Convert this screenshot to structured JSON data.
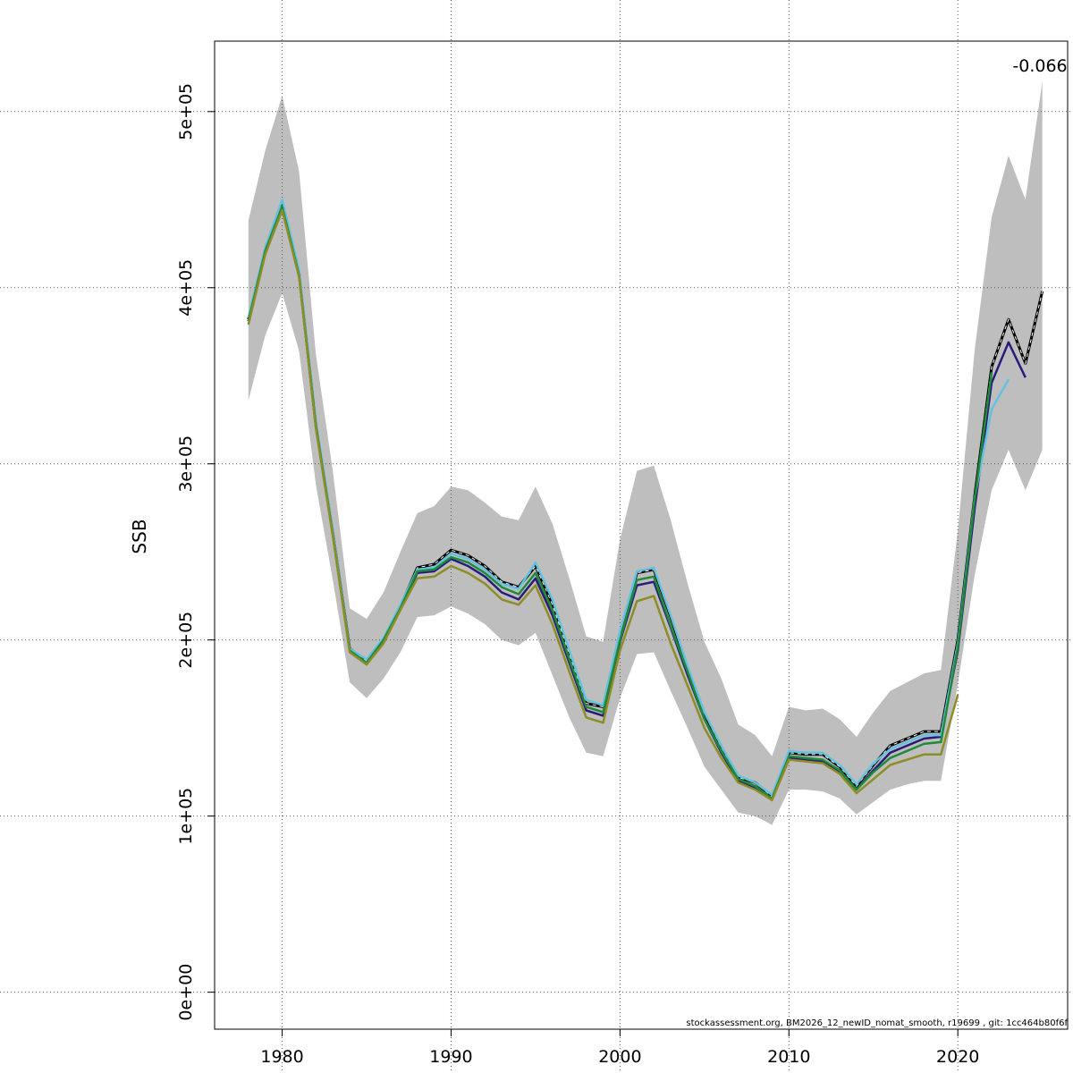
{
  "chart_data": {
    "type": "line",
    "title": "",
    "xlabel": "",
    "ylabel": "SSB",
    "xlim": [
      1976,
      2026.5
    ],
    "ylim": [
      -21000,
      540000
    ],
    "grid": true,
    "x_ticks": [
      1980,
      1990,
      2000,
      2010,
      2020
    ],
    "x_tick_labels": [
      "1980",
      "1990",
      "2000",
      "2010",
      "2020"
    ],
    "y_ticks": [
      0,
      100000,
      200000,
      300000,
      400000,
      500000
    ],
    "y_tick_labels": [
      "0e+00",
      "1e+05",
      "2e+05",
      "3e+05",
      "4e+05",
      "5e+05"
    ],
    "annotation": "-0.066",
    "footer": "stockassessment.org, BM2026_12_newID_nomat_smooth, r19699 , git: 1cc464b80f6f",
    "band": {
      "color": "#bebebe",
      "x": [
        1978,
        1979,
        1980,
        1981,
        1982,
        1983,
        1984,
        1985,
        1986,
        1987,
        1988,
        1989,
        1990,
        1991,
        1992,
        1993,
        1994,
        1995,
        1996,
        1997,
        1998,
        1999,
        2000,
        2001,
        2002,
        2003,
        2004,
        2005,
        2006,
        2007,
        2008,
        2009,
        2010,
        2011,
        2012,
        2013,
        2014,
        2015,
        2016,
        2017,
        2018,
        2019,
        2020,
        2021,
        2022,
        2023,
        2024,
        2025
      ],
      "lower": [
        336000,
        373000,
        397000,
        364000,
        288000,
        234000,
        176000,
        167000,
        178000,
        193000,
        213000,
        214000,
        219000,
        215000,
        209000,
        200000,
        197000,
        204000,
        180000,
        156000,
        136000,
        134000,
        167000,
        192000,
        193000,
        171000,
        150000,
        128000,
        115000,
        102000,
        100000,
        95000,
        115000,
        115000,
        114000,
        110000,
        101000,
        108000,
        115000,
        118000,
        120000,
        120000,
        175000,
        237000,
        285000,
        308000,
        285000,
        308000
      ],
      "upper": [
        438000,
        478000,
        509000,
        466000,
        362000,
        296000,
        218000,
        212000,
        227000,
        250000,
        272000,
        276000,
        287000,
        285000,
        278000,
        270000,
        268000,
        287000,
        266000,
        235000,
        202000,
        199000,
        257000,
        296000,
        299000,
        268000,
        232000,
        199000,
        178000,
        152000,
        146000,
        134000,
        162000,
        160000,
        161000,
        155000,
        145000,
        159000,
        171000,
        176000,
        181000,
        183000,
        262000,
        365000,
        440000,
        475000,
        450000,
        517000
      ]
    },
    "series": [
      {
        "color": "#000000",
        "dashed": true,
        "x": [
          1978,
          1979,
          1980,
          1981,
          1982,
          1983,
          1984,
          1985,
          1986,
          1987,
          1988,
          1989,
          1990,
          1991,
          1992,
          1993,
          1994,
          1995,
          1996,
          1997,
          1998,
          1999,
          2000,
          2001,
          2002,
          2003,
          2004,
          2005,
          2006,
          2007,
          2008,
          2009,
          2010,
          2011,
          2012,
          2013,
          2014,
          2015,
          2016,
          2017,
          2018,
          2019,
          2020,
          2021,
          2022,
          2023,
          2024,
          2025
        ],
        "values": [
          382000,
          421000,
          447000,
          408000,
          322000,
          261000,
          195000,
          188000,
          200000,
          219000,
          241000,
          243000,
          251000,
          248000,
          242000,
          233000,
          230000,
          242000,
          220000,
          192000,
          164000,
          162000,
          204000,
          238000,
          240000,
          213000,
          184000,
          158000,
          139000,
          122000,
          119000,
          111000,
          136000,
          135000,
          135000,
          128000,
          117000,
          129000,
          140000,
          144000,
          148000,
          148000,
          200000,
          282000,
          355000,
          382000,
          357000,
          398000
        ]
      },
      {
        "color": "#2b1a7a",
        "x": [
          1978,
          1979,
          1980,
          1981,
          1982,
          1983,
          1984,
          1985,
          1986,
          1987,
          1988,
          1989,
          1990,
          1991,
          1992,
          1993,
          1994,
          1995,
          1996,
          1997,
          1998,
          1999,
          2000,
          2001,
          2002,
          2003,
          2004,
          2005,
          2006,
          2007,
          2008,
          2009,
          2010,
          2011,
          2012,
          2013,
          2014,
          2015,
          2016,
          2017,
          2018,
          2019,
          2020,
          2021,
          2022,
          2023,
          2024
        ],
        "values": [
          381000,
          420000,
          446000,
          407000,
          321000,
          260000,
          194000,
          187000,
          199000,
          218000,
          238000,
          239000,
          246000,
          242000,
          236000,
          227000,
          223000,
          235000,
          214000,
          187000,
          160000,
          157000,
          199000,
          231000,
          233000,
          207000,
          180000,
          155000,
          136000,
          120000,
          116000,
          110000,
          133000,
          132000,
          131000,
          125000,
          115000,
          126000,
          136000,
          140000,
          144000,
          145000,
          194000,
          275000,
          346000,
          369000,
          349000
        ]
      },
      {
        "color": "#63c2e0",
        "x": [
          1978,
          1979,
          1980,
          1981,
          1982,
          1983,
          1984,
          1985,
          1986,
          1987,
          1988,
          1989,
          1990,
          1991,
          1992,
          1993,
          1994,
          1995,
          1996,
          1997,
          1998,
          1999,
          2000,
          2001,
          2002,
          2003,
          2004,
          2005,
          2006,
          2007,
          2008,
          2009,
          2010,
          2011,
          2012,
          2013,
          2014,
          2015,
          2016,
          2017,
          2018,
          2019,
          2020,
          2021,
          2022,
          2023
        ],
        "values": [
          383000,
          423000,
          450000,
          410000,
          324000,
          262000,
          195000,
          189000,
          201000,
          220000,
          240000,
          241000,
          249000,
          246000,
          240000,
          232000,
          229000,
          244000,
          223000,
          194000,
          166000,
          163000,
          205000,
          239000,
          241000,
          214000,
          185000,
          159000,
          140000,
          123000,
          119000,
          112000,
          137000,
          136000,
          136000,
          129000,
          118000,
          130000,
          138000,
          142000,
          146000,
          146000,
          198000,
          281000,
          331000,
          348000
        ]
      },
      {
        "color": "#1f8a3a",
        "x": [
          1978,
          1979,
          1980,
          1981,
          1982,
          1983,
          1984,
          1985,
          1986,
          1987,
          1988,
          1989,
          1990,
          1991,
          1992,
          1993,
          1994,
          1995,
          1996,
          1997,
          1998,
          1999,
          2000,
          2001,
          2002,
          2003,
          2004,
          2005,
          2006,
          2007,
          2008,
          2009,
          2010,
          2011,
          2012,
          2013,
          2014,
          2015,
          2016,
          2017,
          2018,
          2019,
          2020,
          2021,
          2022
        ],
        "values": [
          381000,
          421000,
          446000,
          407000,
          322000,
          260000,
          194000,
          187000,
          200000,
          218000,
          239000,
          240000,
          247000,
          244000,
          238000,
          230000,
          226000,
          238000,
          217000,
          189000,
          162000,
          159000,
          200000,
          234000,
          236000,
          208000,
          182000,
          155000,
          137000,
          121000,
          117000,
          110000,
          134000,
          133000,
          132000,
          126000,
          115000,
          125000,
          133000,
          137000,
          141000,
          142000,
          196000,
          280000,
          352000
        ]
      },
      {
        "color": "#8d8d28",
        "x": [
          1978,
          1979,
          1980,
          1981,
          1982,
          1983,
          1984,
          1985,
          1986,
          1987,
          1988,
          1989,
          1990,
          1991,
          1992,
          1993,
          1994,
          1995,
          1996,
          1997,
          1998,
          1999,
          2000,
          2001,
          2002,
          2003,
          2004,
          2005,
          2006,
          2007,
          2008,
          2009,
          2010,
          2011,
          2012,
          2013,
          2014,
          2015,
          2016,
          2017,
          2018,
          2019,
          2020
        ],
        "values": [
          379000,
          419000,
          444000,
          406000,
          320000,
          259000,
          193000,
          186000,
          198000,
          217000,
          235000,
          236000,
          242000,
          238000,
          232000,
          223000,
          220000,
          231000,
          209000,
          182000,
          156000,
          153000,
          194000,
          222000,
          225000,
          198000,
          174000,
          150000,
          133000,
          119000,
          115000,
          109000,
          132000,
          131000,
          130000,
          124000,
          113000,
          121000,
          129000,
          132000,
          135000,
          135000,
          169000
        ]
      }
    ]
  }
}
